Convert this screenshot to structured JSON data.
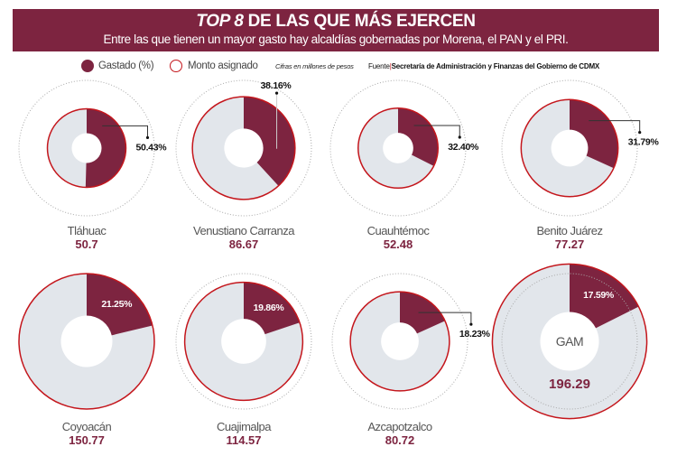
{
  "header": {
    "title_em": "TOP 8",
    "title_rest": " DE LAS QUE MÁS EJERCEN",
    "subtitle": "Entre las que tienen un mayor gasto hay alcaldías gobernadas por Morena, el PAN y el PRI."
  },
  "legend": {
    "spent_label": "Gastado (%)",
    "assigned_label": "Monto asignado",
    "note": "Cifras en millones de pesos",
    "source_prefix": "Fuente",
    "source_bar": "|",
    "source_text": "Secretaría de Administración y Finanzas del Gobierno de CDMX"
  },
  "colors": {
    "spent": "#7d2440",
    "remaining": "#e2e6eb",
    "ring": "#c4161c",
    "reference": "#aaaaaa"
  },
  "chart_data": {
    "type": "pie",
    "title": "TOP 8 DE LAS QUE MÁS EJERCEN",
    "subtitle": "Entre las que tienen un mayor gasto hay alcaldías gobernadas por Morena, el PAN y el PRI.",
    "units": "millones de pesos",
    "legend": [
      "Gastado (%)",
      "Monto asignado"
    ],
    "legend_position": "top",
    "series": [
      {
        "name": "Tláhuac",
        "assigned": 50.7,
        "spent_pct": 50.43,
        "spent_label": "50.43%"
      },
      {
        "name": "Venustiano Carranza",
        "assigned": 86.67,
        "spent_pct": 38.16,
        "spent_label": "38.16%"
      },
      {
        "name": "Cuauhtémoc",
        "assigned": 52.48,
        "spent_pct": 32.4,
        "spent_label": "32.40%"
      },
      {
        "name": "Benito Juárez",
        "assigned": 77.27,
        "spent_pct": 31.79,
        "spent_label": "31.79%"
      },
      {
        "name": "Coyoacán",
        "assigned": 150.77,
        "spent_pct": 21.25,
        "spent_label": "21.25%"
      },
      {
        "name": "Cuajimalpa",
        "assigned": 114.57,
        "spent_pct": 19.86,
        "spent_label": "19.86%"
      },
      {
        "name": "Azcapotzalco",
        "assigned": 80.72,
        "spent_pct": 18.23,
        "spent_label": "18.23%"
      },
      {
        "name": "GAM",
        "assigned": 196.29,
        "spent_pct": 17.59,
        "spent_label": "17.59%"
      }
    ],
    "assigned_labels": [
      "50.7",
      "86.67",
      "52.48",
      "77.27",
      "150.77",
      "114.57",
      "80.72",
      "196.29"
    ]
  }
}
